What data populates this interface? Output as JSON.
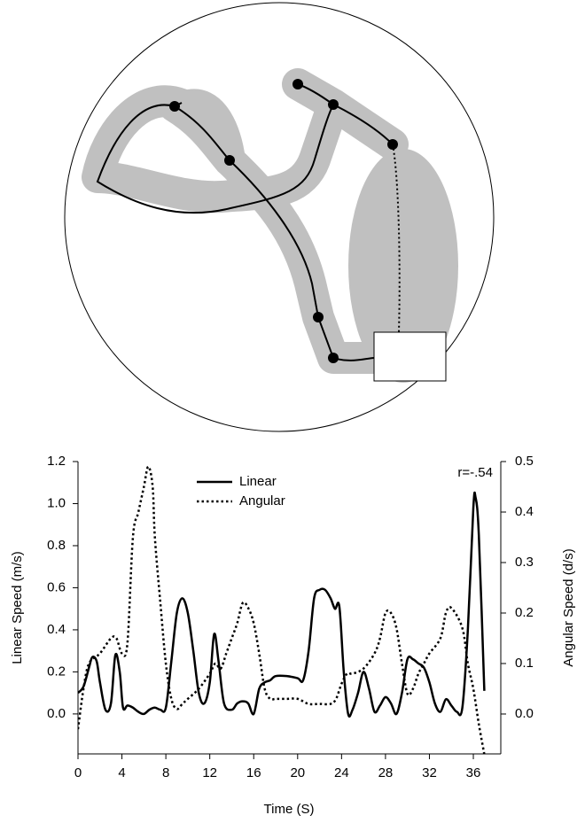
{
  "chart_data": {
    "type": "line",
    "x_label": "Time (S)",
    "y_label": "Linear Speed (m/s)",
    "y2_label": "Angular Speed (d/s)",
    "annotation": "r=-.54",
    "xlim": [
      0,
      38.5
    ],
    "xticks": [
      0,
      4,
      8,
      12,
      16,
      20,
      24,
      28,
      32,
      36
    ],
    "ylim": [
      -0.19,
      1.2
    ],
    "yticks": [
      {
        "value": 0,
        "label": "0.0"
      },
      0.2,
      0.4,
      0.6,
      0.8,
      {
        "value": 1,
        "label": "1.0"
      },
      1.2
    ],
    "y2lim": [
      -0.079,
      0.5
    ],
    "y2ticks": [
      {
        "value": 0,
        "label": "0.0"
      },
      0.1,
      0.2,
      0.3,
      0.4,
      0.5
    ],
    "series": [
      {
        "name": "Linear",
        "color": "#000000",
        "line_style": "solid",
        "x": [
          0,
          0.5,
          1,
          1.3,
          1.7,
          2,
          2.5,
          3,
          3.4,
          3.8,
          4.1,
          4.5,
          5,
          5.5,
          6,
          6.5,
          7,
          7.5,
          8,
          8.5,
          9,
          9.5,
          10,
          10.5,
          11,
          11.5,
          12,
          12.4,
          12.8,
          13.3,
          14,
          14.5,
          15,
          15.5,
          16,
          16.5,
          17,
          17.5,
          18,
          19,
          20,
          20.5,
          21,
          21.5,
          22,
          22.5,
          23,
          23.4,
          23.8,
          24.2,
          24.6,
          25,
          25.5,
          26,
          26.5,
          27,
          27.5,
          28,
          28.5,
          29,
          29.5,
          30,
          30.5,
          31,
          31.5,
          32,
          32.5,
          33,
          33.5,
          34,
          34.5,
          35,
          35.5,
          36,
          36.2,
          36.5,
          37
        ],
        "values": [
          0.1,
          0.13,
          0.22,
          0.27,
          0.25,
          0.15,
          0.02,
          0.05,
          0.28,
          0.2,
          0.03,
          0.04,
          0.03,
          0.01,
          0.0,
          0.02,
          0.03,
          0.02,
          0.03,
          0.25,
          0.48,
          0.55,
          0.48,
          0.3,
          0.1,
          0.05,
          0.15,
          0.38,
          0.25,
          0.05,
          0.02,
          0.05,
          0.06,
          0.05,
          0.0,
          0.12,
          0.15,
          0.16,
          0.18,
          0.18,
          0.17,
          0.16,
          0.3,
          0.55,
          0.59,
          0.59,
          0.55,
          0.5,
          0.51,
          0.2,
          0.0,
          0.02,
          0.1,
          0.2,
          0.12,
          0.01,
          0.04,
          0.08,
          0.05,
          0.0,
          0.1,
          0.26,
          0.26,
          0.24,
          0.22,
          0.15,
          0.05,
          0.01,
          0.07,
          0.04,
          0.01,
          0.03,
          0.4,
          0.98,
          1.03,
          0.85,
          0.11
        ]
      },
      {
        "name": "Angular",
        "color": "#000000",
        "line_style": "dotted",
        "axis": "y2",
        "x": [
          0,
          0.5,
          1,
          2,
          3,
          3.5,
          4,
          4.5,
          5,
          5.5,
          6,
          6.4,
          6.8,
          7,
          7.5,
          8,
          8.5,
          9,
          9.5,
          10,
          11,
          12,
          12.5,
          13,
          13.5,
          14,
          14.5,
          15,
          15.5,
          16,
          16.5,
          17,
          17.5,
          18,
          19,
          20,
          21,
          22,
          23,
          23.5,
          24,
          24.5,
          25,
          26,
          27,
          27.5,
          28,
          28.5,
          29,
          29.5,
          30,
          30.5,
          31,
          31.5,
          32,
          33,
          33.5,
          34,
          35,
          35.5,
          36,
          36.5,
          37
        ],
        "values": [
          -0.03,
          0.05,
          0.1,
          0.12,
          0.15,
          0.15,
          0.12,
          0.14,
          0.35,
          0.4,
          0.45,
          0.49,
          0.45,
          0.35,
          0.22,
          0.1,
          0.03,
          0.01,
          0.02,
          0.03,
          0.05,
          0.08,
          0.1,
          0.09,
          0.12,
          0.15,
          0.18,
          0.22,
          0.21,
          0.18,
          0.12,
          0.05,
          0.03,
          0.03,
          0.03,
          0.03,
          0.02,
          0.02,
          0.02,
          0.03,
          0.06,
          0.08,
          0.08,
          0.09,
          0.12,
          0.15,
          0.2,
          0.2,
          0.17,
          0.1,
          0.04,
          0.05,
          0.08,
          0.1,
          0.12,
          0.15,
          0.2,
          0.21,
          0.17,
          0.1,
          0.05,
          -0.02,
          -0.08
        ]
      }
    ]
  }
}
